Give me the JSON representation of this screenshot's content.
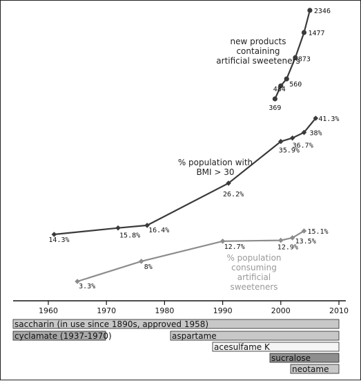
{
  "chart_data": {
    "type": "line",
    "x_ticks": [
      "1960",
      "1970",
      "1980",
      "1990",
      "2000",
      "2010"
    ],
    "xlim": [
      1960,
      2010
    ],
    "series": [
      {
        "name": "new products containing artificial sweeteners",
        "label_lines": [
          "new products",
          "containing",
          "artificial sweeteners"
        ],
        "color": "#3a3a3a",
        "marker": "circle",
        "points": [
          {
            "x": 1999,
            "y": 369,
            "label": "369"
          },
          {
            "x": 2000,
            "y": 484,
            "label": "484"
          },
          {
            "x": 2001,
            "y": 560,
            "label": "560"
          },
          {
            "x": 2002.5,
            "y": 873,
            "label": "873"
          },
          {
            "x": 2004,
            "y": 1477,
            "label": "1477"
          },
          {
            "x": 2005,
            "y": 2346,
            "label": "2346"
          }
        ]
      },
      {
        "name": "% population with BMI > 30",
        "label_lines": [
          "% population with",
          "BMI > 30"
        ],
        "color": "#3a3a3a",
        "marker": "diamond",
        "points": [
          {
            "x": 1961,
            "y": 14.3,
            "label": "14.3%"
          },
          {
            "x": 1972,
            "y": 15.8,
            "label": "15.8%"
          },
          {
            "x": 1977,
            "y": 16.4,
            "label": "16.4%"
          },
          {
            "x": 1991,
            "y": 26.2,
            "label": "26.2%"
          },
          {
            "x": 2000,
            "y": 35.9,
            "label": "35.9%"
          },
          {
            "x": 2002,
            "y": 36.7,
            "label": "36.7%"
          },
          {
            "x": 2004,
            "y": 38,
            "label": "38%"
          },
          {
            "x": 2006,
            "y": 41.3,
            "label": "41.3%"
          }
        ]
      },
      {
        "name": "% population consuming artificial sweeteners",
        "label_lines": [
          "% population",
          "consuming",
          "artificial",
          "sweeteners"
        ],
        "color": "#8c8c8c",
        "marker": "diamond",
        "points": [
          {
            "x": 1965,
            "y": 3.3,
            "label": "3.3%"
          },
          {
            "x": 1976,
            "y": 8,
            "label": "8%"
          },
          {
            "x": 1990,
            "y": 12.7,
            "label": "12.7%"
          },
          {
            "x": 2000,
            "y": 12.9,
            "label": "12.9%"
          },
          {
            "x": 2002,
            "y": 13.5,
            "label": "13.5%"
          },
          {
            "x": 2004,
            "y": 15.1,
            "label": "15.1%"
          }
        ]
      }
    ],
    "timeline": [
      {
        "label": "saccharin (in use since 1890s, approved 1958)",
        "start": 1960,
        "end": 2010,
        "color": "#c8c8c8"
      },
      {
        "label": "cyclamate (1937-1970)",
        "start": 1960,
        "end": 1970,
        "color": "#a8a8a8"
      },
      {
        "label": "aspartame",
        "start": 1980,
        "end": 2010,
        "color": "#c8c8c8"
      },
      {
        "label": "acesulfame K",
        "start": 1988,
        "end": 2010,
        "color": "#f4f4f4"
      },
      {
        "label": "sucralose",
        "start": 1998,
        "end": 2010,
        "color": "#8e8e8e"
      },
      {
        "label": "neotame",
        "start": 2002,
        "end": 2010,
        "color": "#c8c8c8"
      }
    ]
  }
}
